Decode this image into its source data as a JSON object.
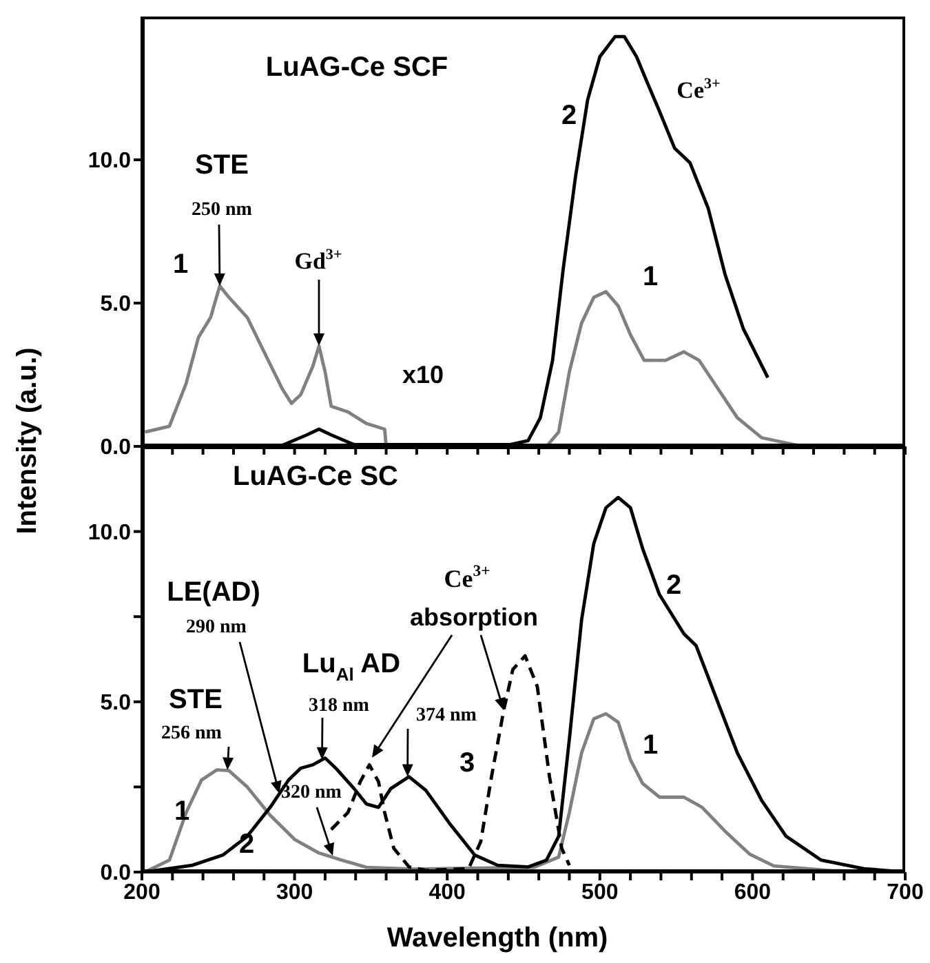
{
  "chart_data": [
    {
      "type": "line",
      "title": "LuAG-Ce SCF",
      "ylabel": "Intensity (a.u.)",
      "xlim": [
        200,
        700
      ],
      "ylim": [
        0,
        15
      ],
      "tick_labels": "y",
      "xticks": [
        {
          "value": 200,
          "label": null
        },
        {
          "value": 220,
          "label": null
        },
        {
          "value": 240,
          "label": null
        },
        {
          "value": 260,
          "label": null
        },
        {
          "value": 280,
          "label": null
        },
        {
          "value": 300,
          "label": null
        },
        {
          "value": 320,
          "label": null
        },
        {
          "value": 340,
          "label": null
        },
        {
          "value": 360,
          "label": null
        },
        {
          "value": 380,
          "label": null
        },
        {
          "value": 400,
          "label": null
        },
        {
          "value": 420,
          "label": null
        },
        {
          "value": 440,
          "label": null
        },
        {
          "value": 460,
          "label": null
        },
        {
          "value": 480,
          "label": null
        },
        {
          "value": 500,
          "label": null
        },
        {
          "value": 520,
          "label": null
        },
        {
          "value": 540,
          "label": null
        },
        {
          "value": 560,
          "label": null
        },
        {
          "value": 580,
          "label": null
        },
        {
          "value": 600,
          "label": null
        },
        {
          "value": 620,
          "label": null
        },
        {
          "value": 640,
          "label": null
        },
        {
          "value": 660,
          "label": null
        },
        {
          "value": 680,
          "label": null
        },
        {
          "value": 700,
          "label": null
        }
      ],
      "yticks": [
        {
          "value": 0,
          "label": "0.0"
        },
        {
          "value": 5,
          "label": "5.0"
        },
        {
          "value": 10,
          "label": "10.0"
        }
      ],
      "series": [
        {
          "color": "#808080",
          "x": [
            202,
            218,
            229,
            237,
            245,
            251,
            257,
            269,
            280,
            292,
            298,
            304,
            312,
            316,
            320,
            324,
            335,
            347,
            359,
            360,
            465,
            473,
            480,
            488,
            496,
            504,
            512,
            520,
            529,
            543,
            555,
            565,
            575,
            590,
            606,
            633,
            700
          ],
          "values": [
            0.5,
            0.7,
            2.2,
            3.8,
            4.5,
            5.6,
            5.2,
            4.5,
            3.3,
            2.0,
            1.5,
            1.8,
            2.8,
            3.5,
            2.6,
            1.4,
            1.2,
            0.8,
            0.6,
            0,
            0,
            0.5,
            2.6,
            4.3,
            5.2,
            5.4,
            4.9,
            3.9,
            3.0,
            3.0,
            3.3,
            3.0,
            2.2,
            1.0,
            0.3,
            0,
            0
          ]
        },
        {
          "color": "#000000",
          "x": [
            200,
            292,
            308,
            316,
            324,
            339,
            371,
            441,
            453,
            461,
            469,
            476,
            484,
            492,
            500,
            510,
            516,
            524,
            531,
            539,
            549,
            559,
            571,
            582,
            594,
            610
          ],
          "values": [
            0,
            0.04,
            0.4,
            0.6,
            0.4,
            0.06,
            0.06,
            0.06,
            0.2,
            1.0,
            3.0,
            6.2,
            9.4,
            12.1,
            13.6,
            14.3,
            14.3,
            13.6,
            12.7,
            11.7,
            10.4,
            9.9,
            8.3,
            6.0,
            4.1,
            2.4
          ]
        }
      ],
      "annotations": [
        "1",
        "STE",
        "250 nm",
        "Gd$^{3+}$",
        "x10",
        "Ce$^{3+}$",
        "2",
        "1"
      ]
    },
    {
      "type": "line",
      "title": "LuAG-Ce SC",
      "xlabel": "Wavelength (nm)",
      "xlim": [
        200,
        700
      ],
      "ylim": [
        0,
        12.5
      ],
      "xticks": [
        200,
        {
          "value": 220,
          "label": null
        },
        {
          "value": 240,
          "label": null
        },
        {
          "value": 260,
          "label": null
        },
        {
          "value": 280,
          "label": null
        },
        300,
        {
          "value": 320,
          "label": null
        },
        {
          "value": 340,
          "label": null
        },
        {
          "value": 360,
          "label": null
        },
        {
          "value": 380,
          "label": null
        },
        400,
        {
          "value": 420,
          "label": null
        },
        {
          "value": 440,
          "label": null
        },
        {
          "value": 460,
          "label": null
        },
        {
          "value": 480,
          "label": null
        },
        500,
        {
          "value": 520,
          "label": null
        },
        {
          "value": 540,
          "label": null
        },
        {
          "value": 560,
          "label": null
        },
        {
          "value": 580,
          "label": null
        },
        600,
        {
          "value": 620,
          "label": null
        },
        {
          "value": 640,
          "label": null
        },
        {
          "value": 660,
          "label": null
        },
        {
          "value": 680,
          "label": null
        },
        700
      ],
      "yticks": [
        {
          "value": 0,
          "label": "0.0"
        },
        {
          "value": 2.5,
          "label": null
        },
        {
          "value": 5,
          "label": "5.0"
        },
        {
          "value": 7.5,
          "label": null
        },
        {
          "value": 10,
          "label": "10.0"
        }
      ],
      "series": [
        {
          "color": "#808080",
          "x": [
            202,
            218,
            229,
            239,
            249,
            257,
            269,
            284,
            300,
            316,
            331,
            347,
            378,
            457,
            473,
            480,
            488,
            496,
            504,
            512,
            520,
            528,
            539,
            555,
            567,
            582,
            598,
            614,
            653,
            700
          ],
          "values": [
            0,
            0.35,
            1.75,
            2.7,
            3.0,
            2.98,
            2.5,
            1.67,
            0.96,
            0.56,
            0.35,
            0.14,
            0.09,
            0.14,
            0.44,
            1.75,
            3.5,
            4.5,
            4.65,
            4.4,
            3.3,
            2.6,
            2.2,
            2.2,
            1.9,
            1.2,
            0.53,
            0.18,
            0.04,
            0
          ]
        },
        {
          "color": "#000000",
          "x": [
            202,
            233,
            253,
            269,
            284,
            296,
            304,
            312,
            320,
            327,
            339,
            347,
            355,
            363,
            375,
            386,
            402,
            418,
            433,
            453,
            465,
            473,
            480,
            488,
            496,
            504,
            512,
            520,
            528,
            539,
            555,
            563,
            575,
            590,
            606,
            622,
            645,
            673,
            700
          ],
          "values": [
            0,
            0.2,
            0.5,
            1.05,
            1.9,
            2.7,
            3.05,
            3.15,
            3.35,
            3.05,
            2.45,
            2.0,
            1.9,
            2.45,
            2.8,
            2.4,
            1.4,
            0.5,
            0.2,
            0.15,
            0.35,
            1.05,
            3.9,
            7.4,
            9.65,
            10.7,
            11.0,
            10.7,
            9.5,
            8.15,
            7.0,
            6.65,
            5.25,
            3.5,
            2.1,
            1.05,
            0.35,
            0.1,
            0
          ]
        },
        {
          "color": "#000000",
          "line_style": "dashed",
          "x": [
            324,
            335,
            343,
            349,
            355,
            359,
            365,
            375,
            386,
            414,
            422,
            429,
            437,
            443,
            451,
            459,
            467,
            475,
            480
          ],
          "values": [
            1.25,
            1.75,
            2.65,
            3.15,
            2.65,
            1.75,
            0.7,
            0.15,
            0.05,
            0.1,
            0.9,
            2.8,
            4.75,
            5.95,
            6.35,
            5.45,
            2.8,
            0.7,
            0.2
          ]
        }
      ],
      "annotations": [
        "STE",
        {
          "text": "256 nm",
          "x": 256,
          "y": 3.0
        },
        "LE(AD)",
        "290 nm",
        "Lu$_{Al}$ AD",
        {
          "text": "318 nm",
          "x": 318,
          "y": 3.3
        },
        {
          "text": "320 nm",
          "x": 325,
          "y": 0.48
        },
        {
          "text": "374 nm",
          "x": 374,
          "y": 2.8
        },
        "Ce$^{3+}$",
        "absorption",
        "3",
        "1",
        "2",
        "2",
        "1"
      ]
    }
  ]
}
